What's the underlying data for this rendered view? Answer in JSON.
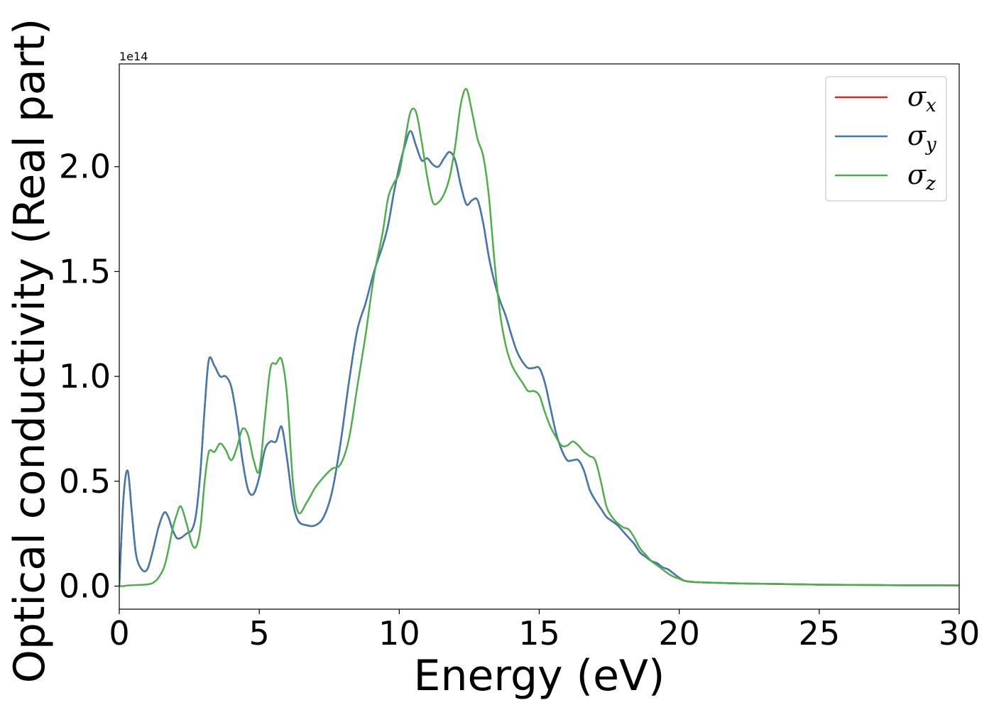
{
  "chart_data": {
    "type": "line",
    "title": "",
    "xlabel": "Energy (eV)",
    "ylabel": "Optical conductivity (Real part)",
    "y_offset_text": "1e14",
    "xlim": [
      0,
      30
    ],
    "ylim": [
      -0.11,
      2.49
    ],
    "x_ticks": [
      0,
      5,
      10,
      15,
      20,
      25,
      30
    ],
    "x_tick_labels": [
      "0",
      "5",
      "10",
      "15",
      "20",
      "25",
      "30"
    ],
    "y_ticks": [
      0,
      0.5,
      1.0,
      1.5,
      2.0
    ],
    "y_tick_labels": [
      "0.0",
      "0.5",
      "1.0",
      "1.5",
      "2.0"
    ],
    "grid": false,
    "legend_position": "top-right",
    "x": [
      0,
      0.15,
      0.3,
      0.45,
      0.6,
      0.8,
      1.0,
      1.2,
      1.4,
      1.6,
      1.75,
      1.9,
      2.05,
      2.2,
      2.4,
      2.6,
      2.75,
      2.9,
      3.05,
      3.2,
      3.4,
      3.6,
      3.8,
      4.0,
      4.2,
      4.4,
      4.6,
      4.8,
      5.0,
      5.2,
      5.4,
      5.6,
      5.8,
      6.0,
      6.2,
      6.4,
      6.7,
      7.0,
      7.3,
      7.6,
      7.9,
      8.2,
      8.5,
      8.8,
      9.1,
      9.4,
      9.6,
      9.8,
      10.0,
      10.2,
      10.4,
      10.6,
      10.8,
      11.0,
      11.2,
      11.4,
      11.6,
      11.8,
      12.0,
      12.2,
      12.4,
      12.6,
      12.8,
      13.0,
      13.2,
      13.4,
      13.6,
      13.8,
      14.0,
      14.2,
      14.4,
      14.6,
      14.8,
      15.0,
      15.2,
      15.4,
      15.6,
      15.8,
      16.0,
      16.2,
      16.4,
      16.6,
      16.8,
      17.0,
      17.2,
      17.4,
      17.6,
      17.8,
      18.0,
      18.2,
      18.4,
      18.6,
      18.8,
      19.0,
      19.2,
      19.4,
      19.6,
      19.8,
      20.0,
      20.2,
      20.5,
      21.0,
      22.0,
      23.0,
      24.0,
      25.0,
      26.0,
      27.0,
      28.0,
      29.0,
      30.0
    ],
    "series": [
      {
        "name": "σx",
        "color": "#d62728",
        "values": [
          0.0,
          0.42,
          0.55,
          0.35,
          0.15,
          0.08,
          0.08,
          0.17,
          0.28,
          0.35,
          0.33,
          0.27,
          0.23,
          0.23,
          0.25,
          0.27,
          0.35,
          0.55,
          0.85,
          1.08,
          1.05,
          1.0,
          1.0,
          0.95,
          0.8,
          0.6,
          0.46,
          0.44,
          0.52,
          0.65,
          0.69,
          0.69,
          0.76,
          0.6,
          0.4,
          0.31,
          0.29,
          0.29,
          0.33,
          0.45,
          0.68,
          0.97,
          1.22,
          1.35,
          1.5,
          1.62,
          1.72,
          1.87,
          2.0,
          2.1,
          2.17,
          2.1,
          2.03,
          2.04,
          2.01,
          2.0,
          2.04,
          2.07,
          2.03,
          1.91,
          1.82,
          1.84,
          1.84,
          1.73,
          1.57,
          1.45,
          1.36,
          1.29,
          1.2,
          1.12,
          1.07,
          1.04,
          1.04,
          1.04,
          0.97,
          0.85,
          0.73,
          0.65,
          0.6,
          0.6,
          0.6,
          0.55,
          0.46,
          0.41,
          0.37,
          0.33,
          0.31,
          0.29,
          0.26,
          0.23,
          0.2,
          0.16,
          0.14,
          0.12,
          0.11,
          0.09,
          0.08,
          0.06,
          0.04,
          0.025,
          0.02,
          0.017,
          0.013,
          0.011,
          0.009,
          0.007,
          0.006,
          0.005,
          0.004,
          0.004,
          0.003
        ]
      },
      {
        "name": "σy",
        "color": "#3f7bb2",
        "values": [
          0.0,
          0.42,
          0.55,
          0.35,
          0.15,
          0.08,
          0.08,
          0.17,
          0.28,
          0.35,
          0.33,
          0.27,
          0.23,
          0.23,
          0.25,
          0.27,
          0.35,
          0.55,
          0.85,
          1.08,
          1.05,
          1.0,
          1.0,
          0.95,
          0.8,
          0.6,
          0.46,
          0.44,
          0.52,
          0.65,
          0.69,
          0.69,
          0.76,
          0.6,
          0.4,
          0.31,
          0.29,
          0.29,
          0.33,
          0.45,
          0.68,
          0.97,
          1.22,
          1.35,
          1.5,
          1.62,
          1.72,
          1.87,
          2.0,
          2.1,
          2.17,
          2.1,
          2.03,
          2.04,
          2.01,
          2.0,
          2.04,
          2.07,
          2.03,
          1.91,
          1.82,
          1.84,
          1.84,
          1.73,
          1.57,
          1.45,
          1.36,
          1.29,
          1.2,
          1.12,
          1.07,
          1.04,
          1.04,
          1.04,
          0.97,
          0.85,
          0.73,
          0.65,
          0.6,
          0.6,
          0.6,
          0.55,
          0.46,
          0.41,
          0.37,
          0.33,
          0.31,
          0.29,
          0.26,
          0.23,
          0.2,
          0.16,
          0.14,
          0.12,
          0.11,
          0.09,
          0.08,
          0.06,
          0.04,
          0.025,
          0.02,
          0.017,
          0.013,
          0.011,
          0.009,
          0.007,
          0.006,
          0.005,
          0.004,
          0.004,
          0.003
        ]
      },
      {
        "name": "σz",
        "color": "#4daf4a",
        "values": [
          0.0,
          0.0,
          0.003,
          0.004,
          0.005,
          0.006,
          0.008,
          0.015,
          0.04,
          0.09,
          0.17,
          0.27,
          0.34,
          0.38,
          0.3,
          0.2,
          0.19,
          0.28,
          0.5,
          0.64,
          0.64,
          0.68,
          0.65,
          0.6,
          0.66,
          0.75,
          0.72,
          0.6,
          0.55,
          0.8,
          1.04,
          1.06,
          1.08,
          0.9,
          0.5,
          0.35,
          0.4,
          0.47,
          0.52,
          0.56,
          0.58,
          0.7,
          0.95,
          1.2,
          1.48,
          1.68,
          1.85,
          1.92,
          1.97,
          2.12,
          2.26,
          2.26,
          2.12,
          1.95,
          1.83,
          1.83,
          1.87,
          1.95,
          2.1,
          2.3,
          2.37,
          2.26,
          2.13,
          2.05,
          1.86,
          1.55,
          1.3,
          1.15,
          1.06,
          1.01,
          0.97,
          0.93,
          0.93,
          0.91,
          0.83,
          0.76,
          0.71,
          0.67,
          0.67,
          0.69,
          0.67,
          0.64,
          0.62,
          0.6,
          0.5,
          0.38,
          0.33,
          0.3,
          0.28,
          0.27,
          0.23,
          0.18,
          0.15,
          0.12,
          0.1,
          0.08,
          0.06,
          0.045,
          0.035,
          0.025,
          0.02,
          0.017,
          0.013,
          0.011,
          0.009,
          0.007,
          0.006,
          0.005,
          0.004,
          0.004,
          0.003
        ]
      }
    ]
  }
}
